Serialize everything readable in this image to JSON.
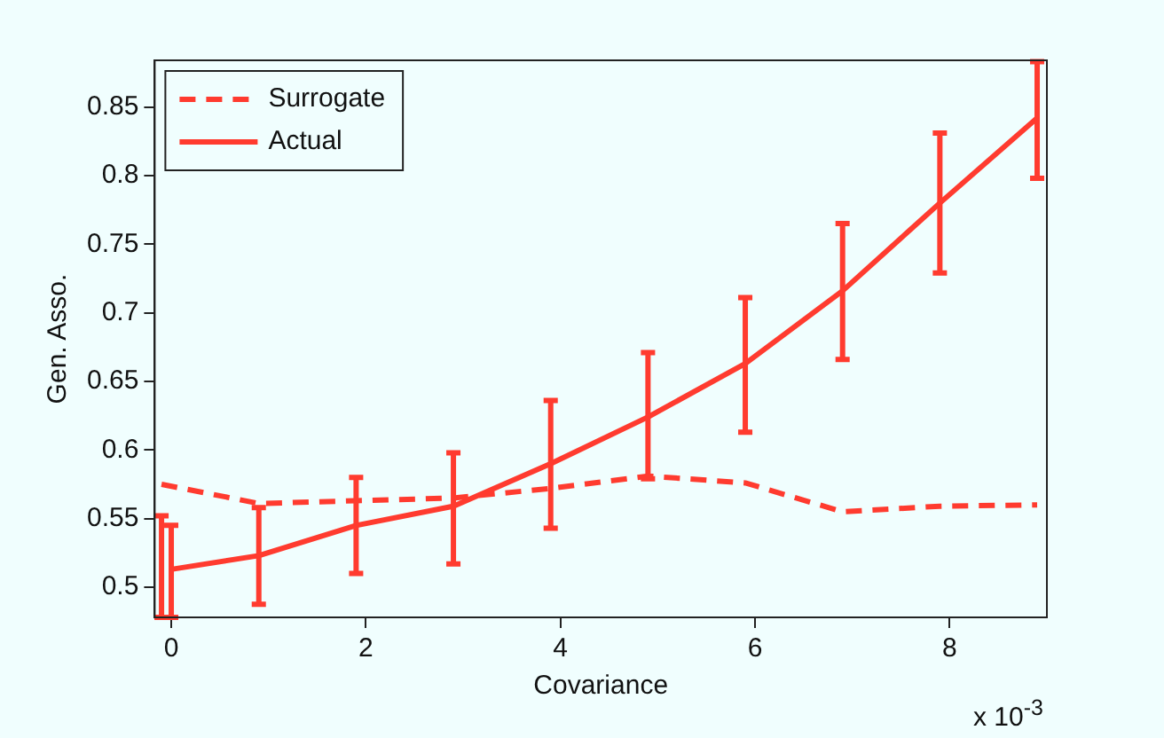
{
  "chart_data": {
    "type": "line",
    "xlabel": "Covariance",
    "ylabel": "Gen. Asso.",
    "annotations": [
      "x 10$^{-3}$"
    ],
    "xlim": [
      -0.17,
      9.0
    ],
    "ylim": [
      0.478,
      0.884
    ],
    "xticks": [
      0,
      2,
      4,
      6,
      8
    ],
    "yticks": [
      0.5,
      0.55,
      0.6,
      0.65,
      0.7,
      0.75,
      0.8,
      0.85
    ],
    "grid": false,
    "legend": "top left",
    "marker": "none",
    "series": [
      {
        "name": "Surrogate",
        "color": "#ff3b2f",
        "line_style": "dashed",
        "x": [
          -0.1,
          0.9,
          1.9,
          2.9,
          3.9,
          4.9,
          5.9,
          6.9,
          7.9,
          8.9
        ],
        "values": [
          0.575,
          0.561,
          0.563,
          0.565,
          0.572,
          0.581,
          0.576,
          0.555,
          0.559,
          0.56
        ],
        "errors": [
          [
            0.478,
            0.552
          ],
          null,
          null,
          null,
          null,
          null,
          null,
          null,
          null,
          null
        ]
      },
      {
        "name": "Actual",
        "color": "#ff3b2f",
        "line_style": "solid",
        "x": [
          0,
          0.9,
          1.9,
          2.9,
          3.9,
          4.9,
          5.9,
          6.9,
          7.9,
          8.9
        ],
        "values": [
          0.513,
          0.523,
          0.545,
          0.559,
          0.59,
          0.624,
          0.663,
          0.716,
          0.78,
          0.842
        ],
        "errors": [
          [
            0.478,
            0.545
          ],
          [
            0.4875,
            0.558
          ],
          [
            0.51,
            0.58
          ],
          [
            0.517,
            0.598
          ],
          [
            0.543,
            0.636
          ],
          [
            0.579,
            0.671
          ],
          [
            0.613,
            0.711
          ],
          [
            0.666,
            0.765
          ],
          [
            0.729,
            0.831
          ],
          [
            0.798,
            0.883
          ]
        ]
      }
    ]
  }
}
